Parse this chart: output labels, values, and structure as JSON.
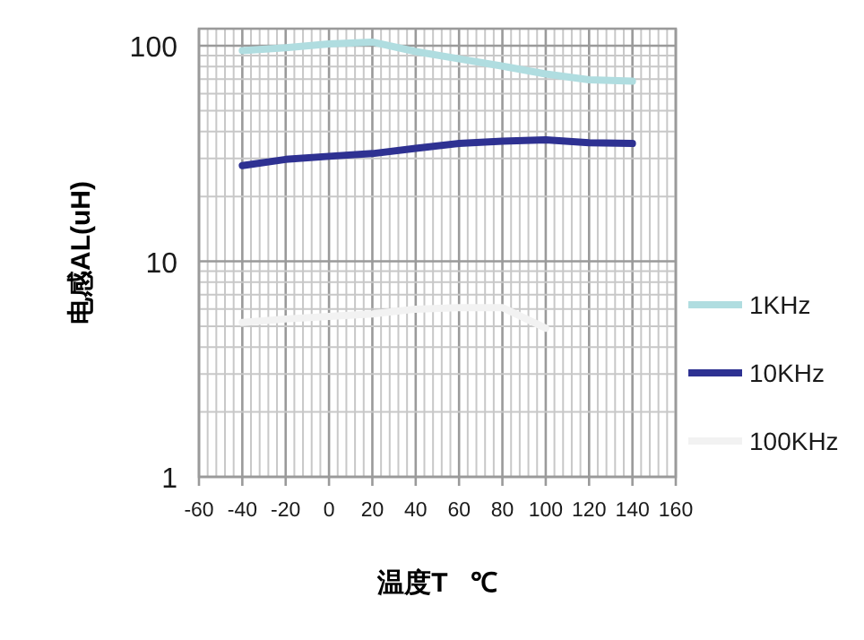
{
  "chart_data": {
    "type": "line",
    "xlabel": "温度T   ℃",
    "ylabel": "电感AL(uH)",
    "x": [
      -40,
      -20,
      0,
      20,
      40,
      60,
      80,
      100,
      120,
      140
    ],
    "series": [
      {
        "name": "1KHz",
        "color": "#b0dde0",
        "values": [
          95,
          98,
          102,
          104,
          94,
          87,
          80.5,
          74,
          69.5,
          68.5
        ]
      },
      {
        "name": "10KHz",
        "color": "#2e3192",
        "values": [
          27.8,
          29.7,
          30.7,
          31.6,
          33.4,
          35.2,
          36.1,
          36.6,
          35.5,
          35.2
        ]
      },
      {
        "name": "100KHz",
        "color": "#f2f2f2",
        "values": [
          5.2,
          5.4,
          5.55,
          5.7,
          6.0,
          6.1,
          6.1,
          4.9,
          null,
          null
        ]
      }
    ],
    "xlim": [
      -60,
      160
    ],
    "xticks": [
      -60,
      -40,
      -20,
      0,
      20,
      40,
      60,
      80,
      100,
      120,
      140,
      160
    ],
    "ylim": [
      1,
      120
    ],
    "yticks": [
      1,
      10,
      100
    ],
    "log": "y",
    "grid": true,
    "legend": "right",
    "marker": "none",
    "line_style": "solid"
  }
}
